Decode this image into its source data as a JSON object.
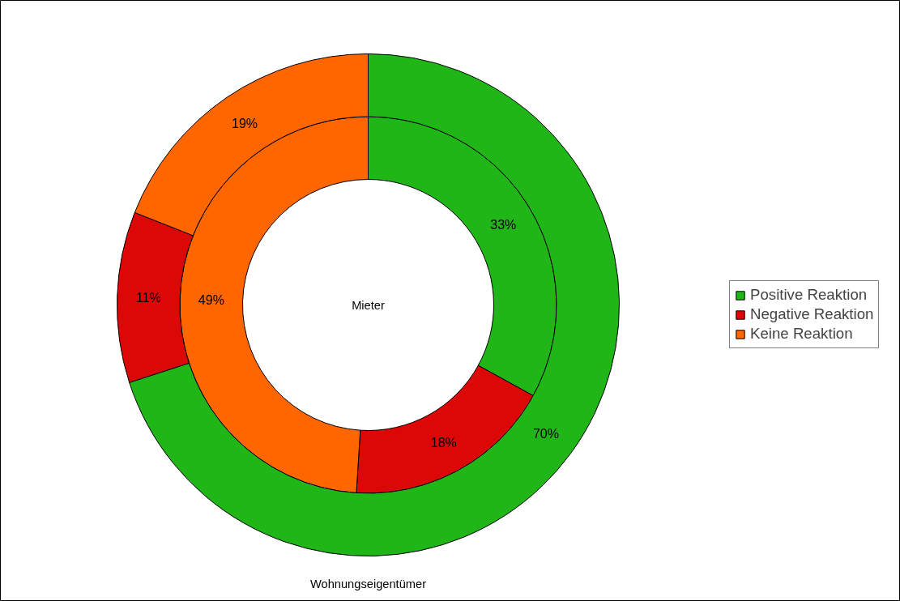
{
  "chart_data": {
    "type": "donut",
    "categories": [
      "Positive Reaktion",
      "Negative Reaktion",
      "Keine Reaktion"
    ],
    "series": [
      {
        "name": "Mieter",
        "values": [
          33,
          18,
          49
        ],
        "colors": [
          "#21b618",
          "#dc0707",
          "#ff6600"
        ],
        "value_labels": [
          "33%",
          "18%",
          "49%"
        ]
      },
      {
        "name": "Wohnungseigentümer",
        "values": [
          70,
          11,
          19
        ],
        "colors": [
          "#21b618",
          "#dc0707",
          "#ff6600"
        ],
        "value_labels": [
          "70%",
          "11%",
          "19%"
        ]
      }
    ],
    "legend": "right"
  }
}
